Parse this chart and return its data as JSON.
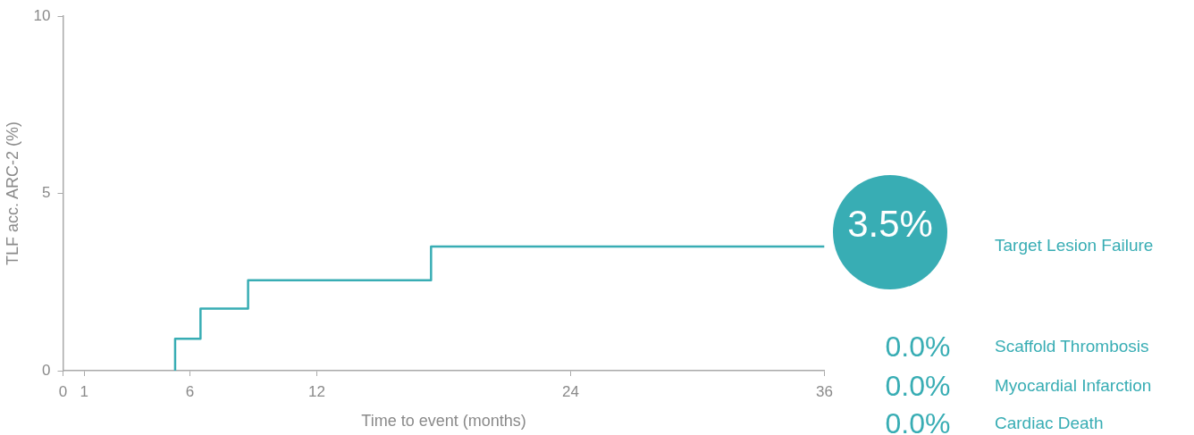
{
  "chart_data": {
    "type": "step",
    "xlabel": "Time to event (months)",
    "ylabel": "TLF acc. ARC-2 (%)",
    "x": [
      5.3,
      5.3,
      6.5,
      8.75,
      17.4,
      36
    ],
    "series": [
      {
        "color": "#38adb4",
        "values": [
          0,
          0.9,
          1.75,
          2.55,
          3.5,
          3.5
        ]
      }
    ],
    "xlim": [
      0,
      36
    ],
    "xticks": [
      0,
      1,
      6,
      12,
      24,
      36
    ],
    "ylim": [
      0,
      10
    ],
    "yticks": [
      0,
      5,
      10
    ],
    "grid": false,
    "legend": false,
    "marker": "none",
    "annotations": [
      "3.5%",
      "Target Lesion Failure",
      "0.0%",
      "Scaffold Thrombosis",
      "0.0%",
      "Myocardial Infarction",
      "0.0%",
      "Cardiac Death"
    ]
  }
}
